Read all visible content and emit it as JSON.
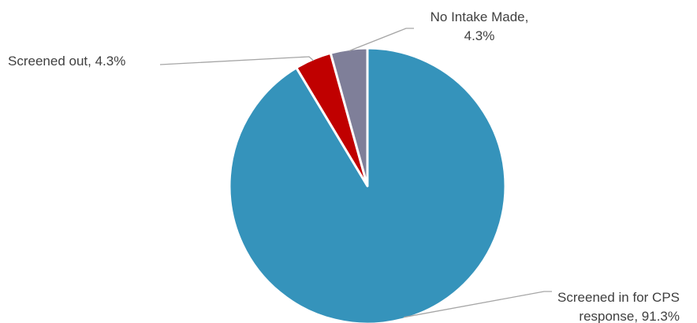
{
  "chart_data": {
    "type": "pie",
    "slices": [
      {
        "label_lines": [
          "Screened in for CPS",
          "response, 91.3%"
        ],
        "category": "Screened in for CPS response",
        "value": 91.3,
        "color": "#3593bb"
      },
      {
        "label_lines": [
          "Screened out, 4.3%"
        ],
        "category": "Screened out",
        "value": 4.3,
        "color": "#c00000"
      },
      {
        "label_lines": [
          "No Intake Made,",
          "4.3%"
        ],
        "category": "No Intake Made",
        "value": 4.3,
        "color": "#7f7f99"
      }
    ],
    "start_angle_deg": 0,
    "direction": "clockwise",
    "legend": "none",
    "data_labels": "outside with leader lines"
  }
}
